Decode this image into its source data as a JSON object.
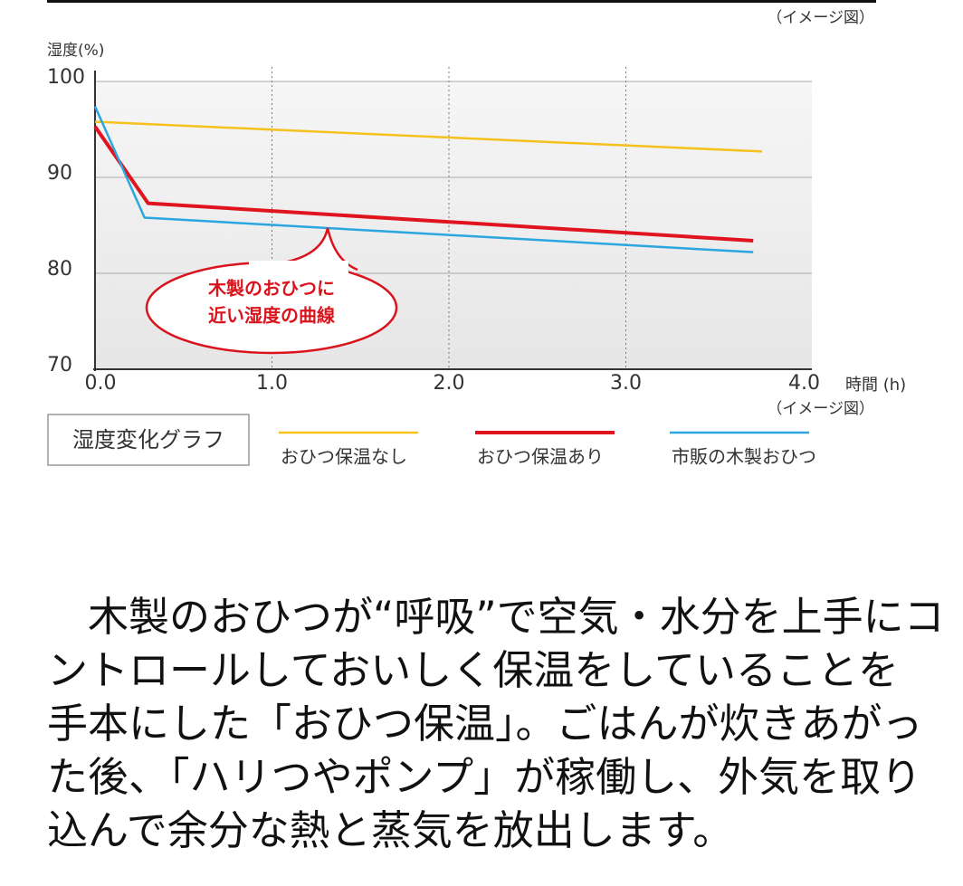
{
  "note_top": "（イメージ図）",
  "chart_data": {
    "type": "line",
    "y_label": "湿度(%)",
    "x_label": "時間 (h)",
    "note": "（イメージ図）",
    "legend_title": "湿度変化グラフ",
    "annotation": [
      "木製のおひつに",
      "近い湿度の曲線"
    ],
    "xlim": [
      0,
      4
    ],
    "ylim": [
      70,
      100
    ],
    "xticks": [
      {
        "value": 0,
        "label": "0.0"
      },
      {
        "value": 1,
        "label": "1.0"
      },
      {
        "value": 2,
        "label": "2.0"
      },
      {
        "value": 3,
        "label": "3.0"
      },
      {
        "value": 4,
        "label": "4.0"
      }
    ],
    "yticks": [
      70,
      80,
      90,
      100
    ],
    "grid": true,
    "series": [
      {
        "name": "おひつ保温なし",
        "color": "#f5c11d",
        "x": [
          0,
          3.77
        ],
        "values": [
          95.8,
          92.7
        ]
      },
      {
        "name": "おひつ保温あり",
        "color": "#e0141e",
        "x": [
          0,
          0.3,
          3.72
        ],
        "values": [
          95.3,
          87.3,
          83.4
        ]
      },
      {
        "name": "市販の木製おひつ",
        "color": "#2ba6de",
        "x": [
          0,
          0.28,
          3.72
        ],
        "values": [
          97.4,
          85.8,
          82.2
        ]
      }
    ]
  },
  "paragraph": [
    "　木製のおひつが“呼吸”で空気・水分を上手にコ",
    "ントロールしておいしく保温をしていることを",
    "手本にした「おひつ保温」。ごはんが炊きあがっ",
    "た後、「ハリつやポンプ」が稼働し、外気を取り",
    "込んで余分な熱と蒸気を放出します。"
  ]
}
